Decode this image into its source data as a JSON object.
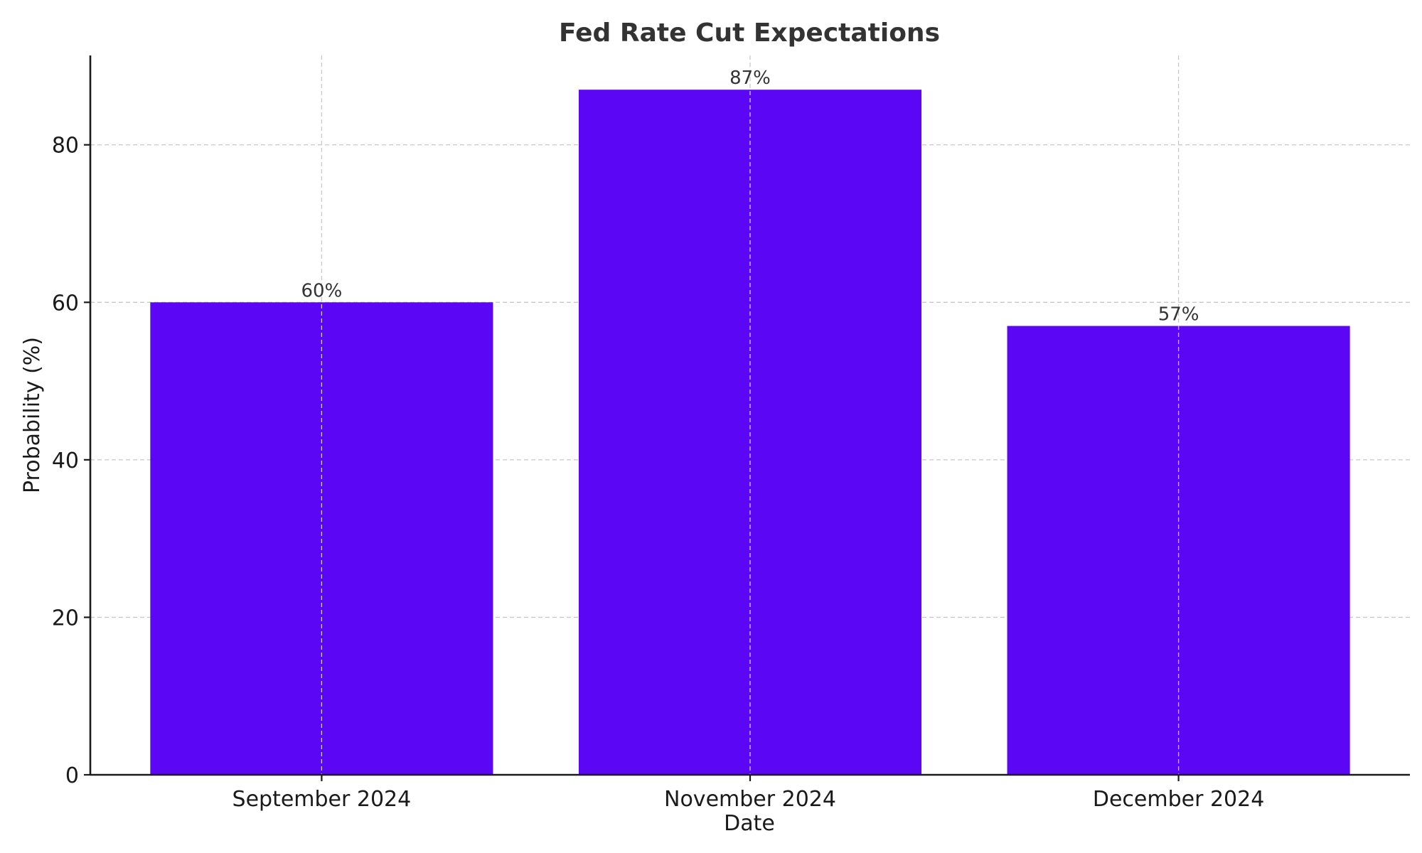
{
  "chart_data": {
    "type": "bar",
    "title": "Fed Rate Cut Expectations",
    "xlabel": "Date",
    "ylabel": "Probability (%)",
    "categories": [
      "September 2024",
      "November 2024",
      "December 2024"
    ],
    "values": [
      60,
      87,
      57
    ],
    "data_labels": [
      "60%",
      "87%",
      "57%"
    ],
    "ylim": [
      0,
      91.35
    ],
    "yticks": [
      0,
      20,
      40,
      60,
      80
    ],
    "grid": true,
    "bar_color": "#5b06f4"
  }
}
